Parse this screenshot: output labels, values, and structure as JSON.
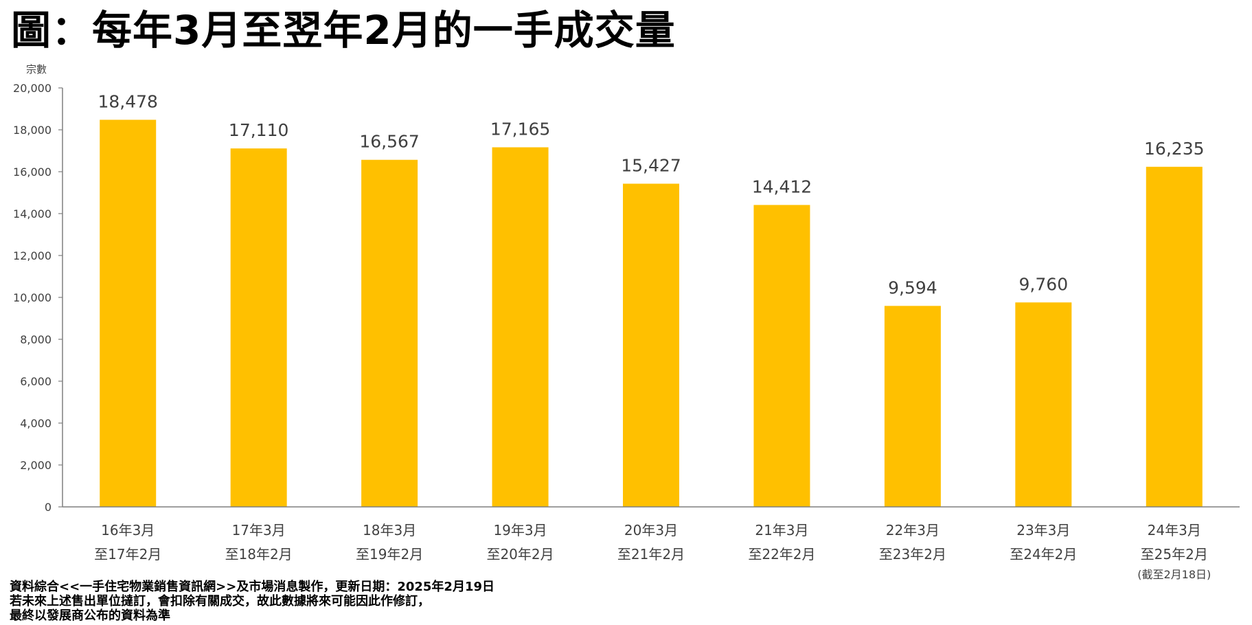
{
  "title": "圖：每年3月至翌年2月的一手成交量",
  "footnote": {
    "lines": [
      "資料綜合<<一手住宅物業銷售資訊網>>及市場消息製作，更新日期：2025年2月19日",
      "若未來上述售出單位撻訂，會扣除有關成交，故此數據將來可能因此作修訂，",
      "最終以發展商公布的資料為準"
    ]
  },
  "chart_data": {
    "type": "bar",
    "title": "",
    "ylabel": "宗數",
    "xlabel": "",
    "ylim": [
      0,
      20000
    ],
    "yticks": [
      0,
      2000,
      4000,
      6000,
      8000,
      10000,
      12000,
      14000,
      16000,
      18000,
      20000
    ],
    "ytick_labels": [
      "0",
      "2,000",
      "4,000",
      "6,000",
      "8,000",
      "10,000",
      "12,000",
      "14,000",
      "16,000",
      "18,000",
      "20,000"
    ],
    "grid": false,
    "legend": "none",
    "bar_color": "#FFC000",
    "categories": [
      [
        "16年3月",
        "至17年2月"
      ],
      [
        "17年3月",
        "至18年2月"
      ],
      [
        "18年3月",
        "至19年2月"
      ],
      [
        "19年3月",
        "至20年2月"
      ],
      [
        "20年3月",
        "至21年2月"
      ],
      [
        "21年3月",
        "至22年2月"
      ],
      [
        "22年3月",
        "至23年2月"
      ],
      [
        "23年3月",
        "至24年2月"
      ],
      [
        "24年3月",
        "至25年2月",
        "(截至2月18日)"
      ]
    ],
    "values": [
      18478,
      17110,
      16567,
      17165,
      15427,
      14412,
      9594,
      9760,
      16235
    ],
    "data_labels": [
      "18,478",
      "17,110",
      "16,567",
      "17,165",
      "15,427",
      "14,412",
      "9,594",
      "9,760",
      "16,235"
    ]
  }
}
